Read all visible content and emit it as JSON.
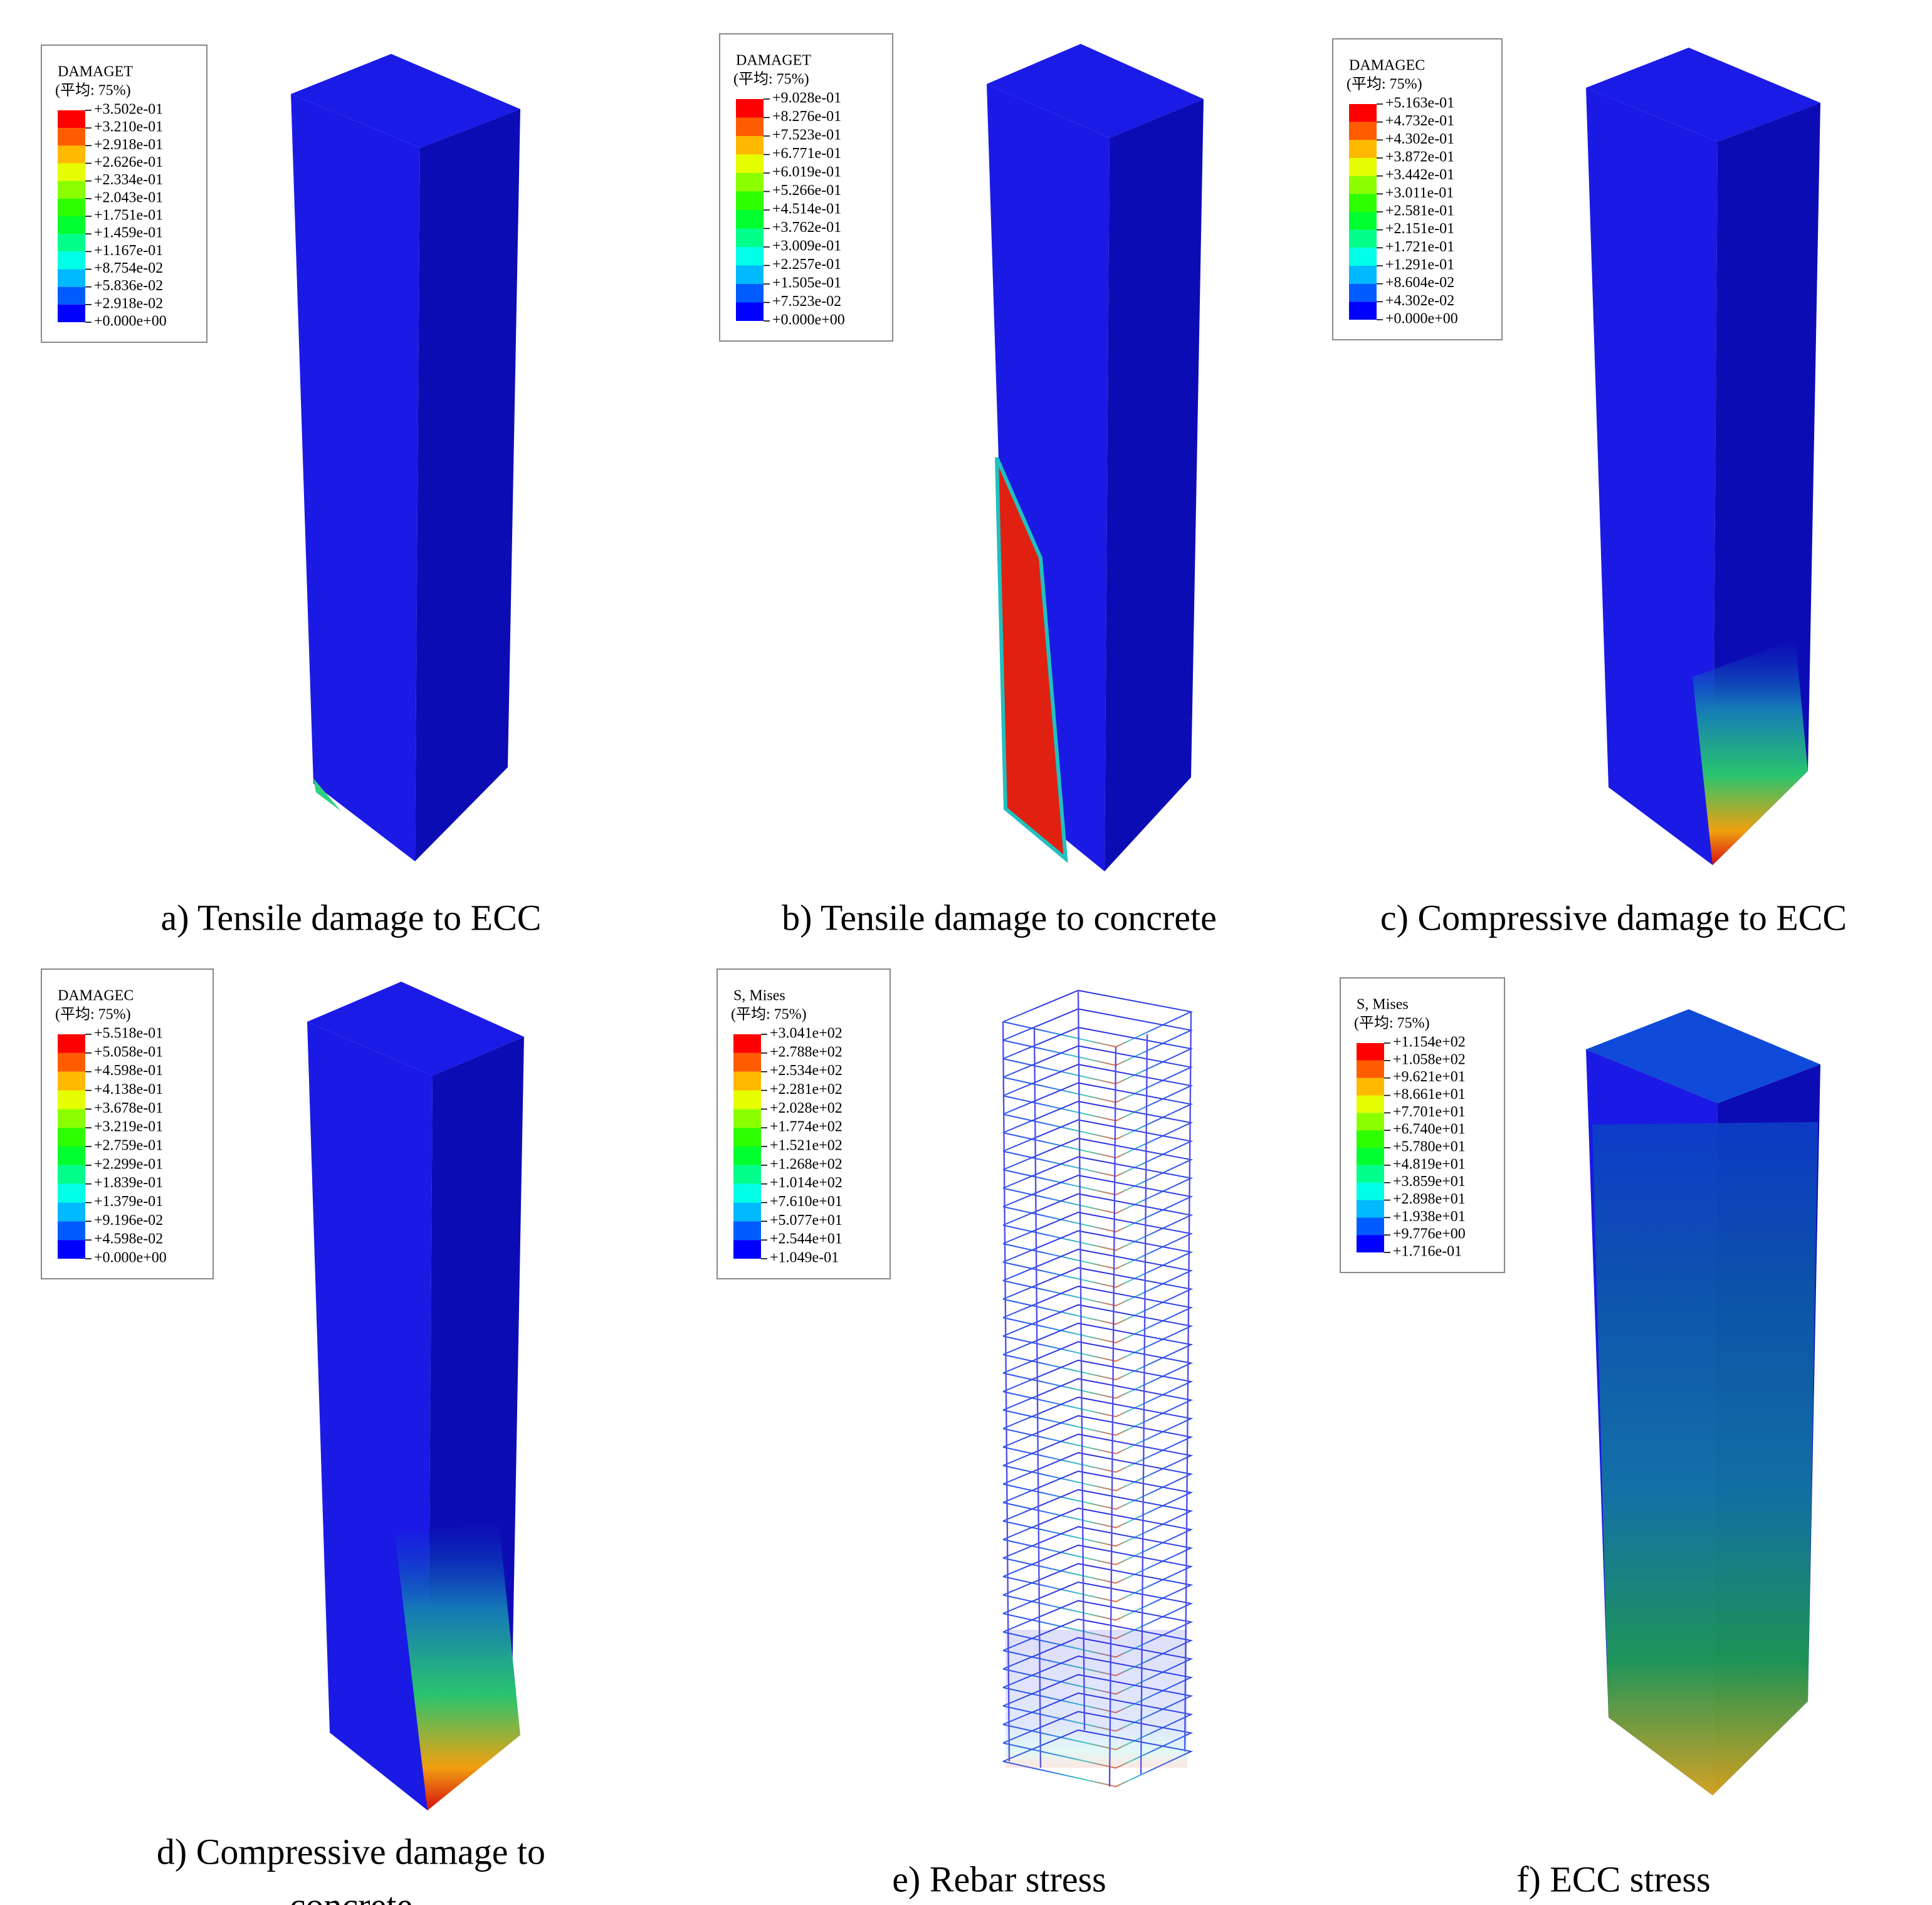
{
  "panels": [
    {
      "legend": {
        "title": "DAMAGET",
        "subtitle": "(平均: 75%)",
        "labels": [
          "+3.502e-01",
          "+3.210e-01",
          "+2.918e-01",
          "+2.626e-01",
          "+2.334e-01",
          "+2.043e-01",
          "+1.751e-01",
          "+1.459e-01",
          "+1.167e-01",
          "+8.754e-02",
          "+5.836e-02",
          "+2.918e-02",
          "+0.000e+00"
        ]
      },
      "caption": [
        "a) Tensile damage to ECC"
      ]
    },
    {
      "legend": {
        "title": "DAMAGET",
        "subtitle": "(平均: 75%)",
        "labels": [
          "+9.028e-01",
          "+8.276e-01",
          "+7.523e-01",
          "+6.771e-01",
          "+6.019e-01",
          "+5.266e-01",
          "+4.514e-01",
          "+3.762e-01",
          "+3.009e-01",
          "+2.257e-01",
          "+1.505e-01",
          "+7.523e-02",
          "+0.000e+00"
        ]
      },
      "caption": [
        "b) Tensile damage to concrete"
      ]
    },
    {
      "legend": {
        "title": "DAMAGEC",
        "subtitle": "(平均: 75%)",
        "labels": [
          "+5.163e-01",
          "+4.732e-01",
          "+4.302e-01",
          "+3.872e-01",
          "+3.442e-01",
          "+3.011e-01",
          "+2.581e-01",
          "+2.151e-01",
          "+1.721e-01",
          "+1.291e-01",
          "+8.604e-02",
          "+4.302e-02",
          "+0.000e+00"
        ]
      },
      "caption": [
        "c) Compressive damage to ECC"
      ]
    },
    {
      "legend": {
        "title": "DAMAGEC",
        "subtitle": "(平均: 75%)",
        "labels": [
          "+5.518e-01",
          "+5.058e-01",
          "+4.598e-01",
          "+4.138e-01",
          "+3.678e-01",
          "+3.219e-01",
          "+2.759e-01",
          "+2.299e-01",
          "+1.839e-01",
          "+1.379e-01",
          "+9.196e-02",
          "+4.598e-02",
          "+0.000e+00"
        ]
      },
      "caption": [
        "d) Compressive damage to",
        "concrete"
      ]
    },
    {
      "legend": {
        "title": "S, Mises",
        "subtitle": "(平均: 75%)",
        "labels": [
          "+3.041e+02",
          "+2.788e+02",
          "+2.534e+02",
          "+2.281e+02",
          "+2.028e+02",
          "+1.774e+02",
          "+1.521e+02",
          "+1.268e+02",
          "+1.014e+02",
          "+7.610e+01",
          "+5.077e+01",
          "+2.544e+01",
          "+1.049e-01"
        ]
      },
      "caption": [
        "e) Rebar stress"
      ]
    },
    {
      "legend": {
        "title": "S, Mises",
        "subtitle": "(平均: 75%)",
        "labels": [
          "+1.154e+02",
          "+1.058e+02",
          "+9.621e+01",
          "+8.661e+01",
          "+7.701e+01",
          "+6.740e+01",
          "+5.780e+01",
          "+4.819e+01",
          "+3.859e+01",
          "+2.898e+01",
          "+1.938e+01",
          "+9.776e+00",
          "+1.716e-01"
        ]
      },
      "caption": [
        "f) ECC stress"
      ]
    }
  ]
}
